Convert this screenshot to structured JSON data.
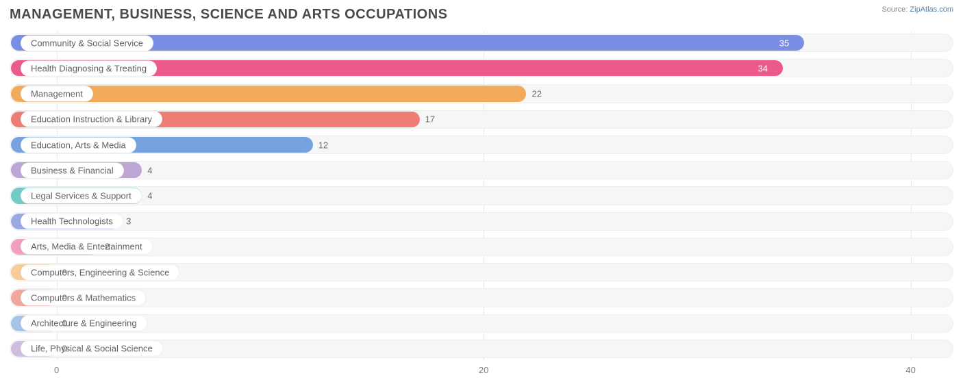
{
  "title": "MANAGEMENT, BUSINESS, SCIENCE AND ARTS OCCUPATIONS",
  "source": {
    "label": "Source:",
    "name": "ZipAtlas.com"
  },
  "chart": {
    "type": "bar-horizontal",
    "x_min": -2.2,
    "x_max": 42,
    "ticks": [
      {
        "value": 0,
        "label": "0"
      },
      {
        "value": 20,
        "label": "20"
      },
      {
        "value": 40,
        "label": "40"
      }
    ],
    "grid_color": "#e8e8e8",
    "track_bg": "#f6f6f6",
    "track_border": "#eeeeee",
    "label_fontsize": 13,
    "title_fontsize": 20,
    "title_color": "#4a4a4a",
    "axis_label_color": "#7d7d7d",
    "category_text_color": "#616161",
    "rows": [
      {
        "label": "Community & Social Service",
        "value": 35,
        "bar_color": "#7b8ee6",
        "value_color": "#ffffff",
        "value_inside": true
      },
      {
        "label": "Health Diagnosing & Treating",
        "value": 34,
        "bar_color": "#ec5a8b",
        "value_color": "#ffffff",
        "value_inside": true
      },
      {
        "label": "Management",
        "value": 22,
        "bar_color": "#f3aa5b",
        "value_color": "#6b6b6b",
        "value_inside": false
      },
      {
        "label": "Education Instruction & Library",
        "value": 17,
        "bar_color": "#ee7d76",
        "value_color": "#6b6b6b",
        "value_inside": false
      },
      {
        "label": "Education, Arts & Media",
        "value": 12,
        "bar_color": "#76a3e0",
        "value_color": "#6b6b6b",
        "value_inside": false
      },
      {
        "label": "Business & Financial",
        "value": 4,
        "bar_color": "#bda5d6",
        "value_color": "#6b6b6b",
        "value_inside": false
      },
      {
        "label": "Legal Services & Support",
        "value": 4,
        "bar_color": "#72cbc4",
        "value_color": "#6b6b6b",
        "value_inside": false
      },
      {
        "label": "Health Technologists",
        "value": 3,
        "bar_color": "#9aa9e3",
        "value_color": "#6b6b6b",
        "value_inside": false
      },
      {
        "label": "Arts, Media & Entertainment",
        "value": 2,
        "bar_color": "#f39ec0",
        "value_color": "#6b6b6b",
        "value_inside": false
      },
      {
        "label": "Computers, Engineering & Science",
        "value": 0,
        "bar_color": "#f6cc9a",
        "value_color": "#6b6b6b",
        "value_inside": false
      },
      {
        "label": "Computers & Mathematics",
        "value": 0,
        "bar_color": "#f2a6a0",
        "value_color": "#6b6b6b",
        "value_inside": false
      },
      {
        "label": "Architecture & Engineering",
        "value": 0,
        "bar_color": "#a7c3e8",
        "value_color": "#6b6b6b",
        "value_inside": false
      },
      {
        "label": "Life, Physical & Social Science",
        "value": 0,
        "bar_color": "#cfbee0",
        "value_color": "#6b6b6b",
        "value_inside": false
      }
    ]
  }
}
